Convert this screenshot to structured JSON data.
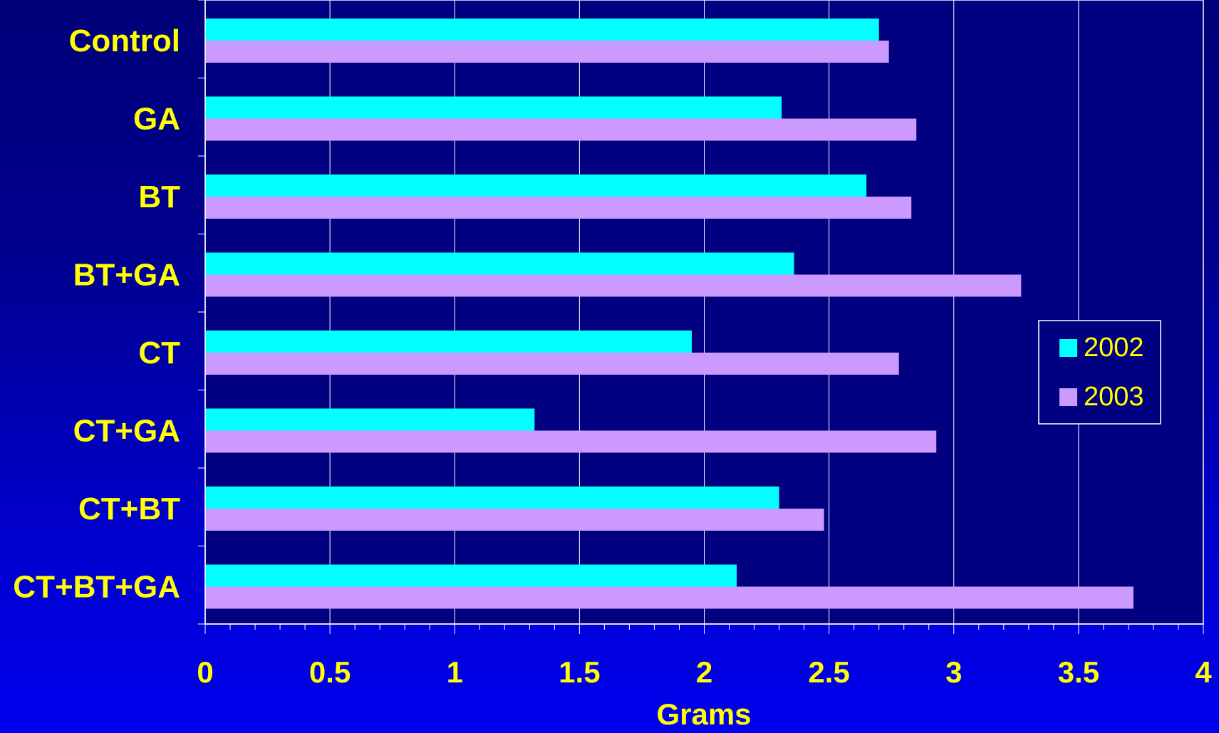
{
  "chart_data": {
    "type": "bar",
    "orientation": "horizontal",
    "categories": [
      "Control",
      "GA",
      "BT",
      "BT+GA",
      "CT",
      "CT+GA",
      "CT+BT",
      "CT+BT+GA"
    ],
    "series": [
      {
        "name": "2002",
        "color": "#00ffff",
        "values": [
          2.7,
          2.31,
          2.65,
          2.36,
          1.95,
          1.32,
          2.3,
          2.13
        ]
      },
      {
        "name": "2003",
        "color": "#cc99ff",
        "values": [
          2.74,
          2.85,
          2.83,
          3.27,
          2.78,
          2.93,
          2.48,
          3.72
        ]
      }
    ],
    "xlabel": "Grams",
    "xlim": [
      0,
      4
    ],
    "xticks": [
      "0",
      "0.5",
      "1",
      "1.5",
      "2",
      "2.5",
      "3",
      "3.5",
      "4"
    ],
    "grid": true,
    "legend_position": "right",
    "colors": {
      "plot_background": "#000080",
      "text": "#ffff00",
      "gridline": "#ffffff"
    }
  }
}
